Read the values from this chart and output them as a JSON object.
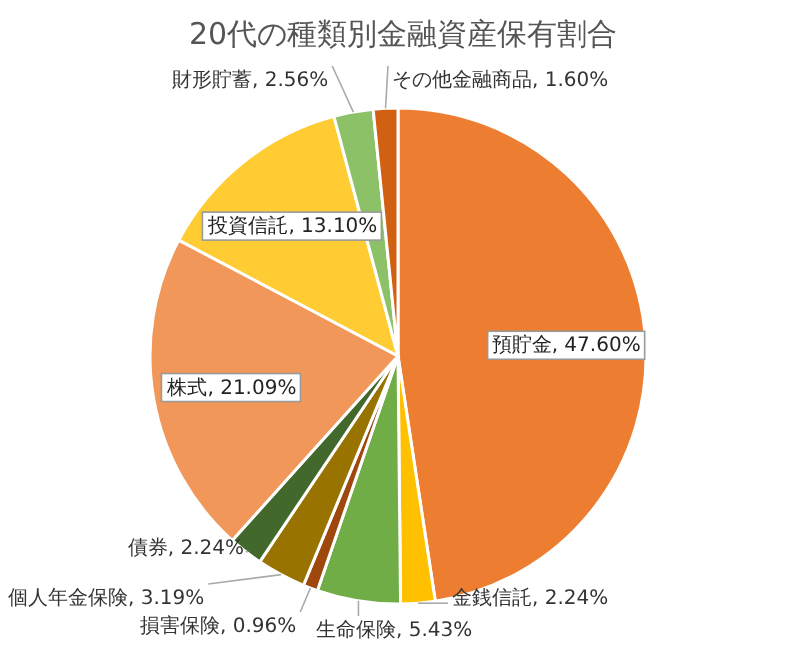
{
  "chart_data": {
    "type": "pie",
    "title": "20代の種類別金融資産保有割合",
    "categories": [
      "預貯金",
      "金銭信託",
      "生命保険",
      "損害保険",
      "個人年金保険",
      "債券",
      "株式",
      "投資信託",
      "財形貯蓄",
      "その他金融商品"
    ],
    "values": [
      47.6,
      2.24,
      5.43,
      0.96,
      3.19,
      2.24,
      21.09,
      13.1,
      2.56,
      1.6
    ],
    "colors": [
      "#ed7d31",
      "#ffc000",
      "#70ad47",
      "#9e480e",
      "#997300",
      "#43682b",
      "#f1975a",
      "#ffcd33",
      "#8cc168",
      "#d26012"
    ],
    "value_labels": [
      ", 47.60%",
      ", 2.24%",
      ", 5.43%",
      ", 0.96%",
      ", 3.19%",
      ", 2.24%",
      ", 21.09%",
      ", 13.10%",
      ", 2.56%",
      ", 1.60%"
    ]
  }
}
